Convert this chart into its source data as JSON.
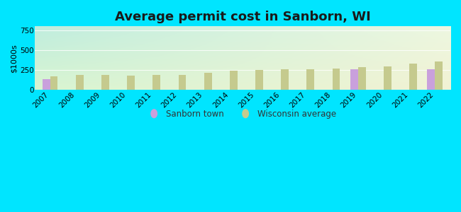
{
  "title": "Average permit cost in Sanborn, WI",
  "ylabel": "$1000s",
  "years": [
    2007,
    2008,
    2009,
    2010,
    2011,
    2012,
    2013,
    2014,
    2015,
    2016,
    2017,
    2018,
    2019,
    2020,
    2021,
    2022
  ],
  "sanborn_values": [
    130,
    null,
    null,
    null,
    null,
    null,
    null,
    null,
    null,
    null,
    null,
    null,
    260,
    null,
    null,
    260
  ],
  "wi_avg_values": [
    170,
    190,
    190,
    175,
    185,
    185,
    215,
    240,
    245,
    255,
    260,
    265,
    285,
    290,
    330,
    360
  ],
  "sanborn_color": "#c9a0dc",
  "wi_avg_color": "#c5ca8e",
  "ylim": [
    0,
    800
  ],
  "yticks": [
    0,
    250,
    500,
    750
  ],
  "bg_left_top": "#b0e8d8",
  "bg_right_top": "#e8f5e0",
  "bg_left_bottom": "#c0f0e8",
  "bg_right_bottom": "#ddf0d0",
  "outer_bg": "#00e5ff",
  "bar_width": 0.3,
  "title_fontsize": 13,
  "axis_label_fontsize": 8,
  "tick_fontsize": 7.5,
  "legend_fontsize": 8.5
}
